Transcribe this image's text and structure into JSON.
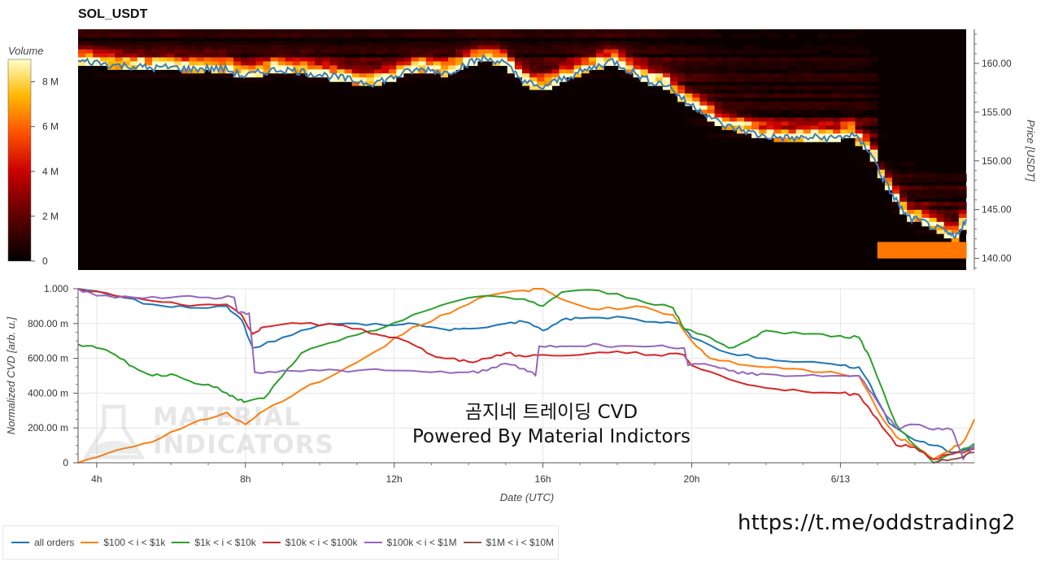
{
  "title": "SOL_USDT",
  "colorbar": {
    "label": "Volume",
    "ticks": [
      "0",
      "2 M",
      "4 M",
      "6 M",
      "8 M"
    ],
    "tick_values": [
      0,
      2,
      4,
      6,
      8
    ],
    "max": 9
  },
  "heatmap": {
    "ylabel": "Price [USDT]",
    "ylim": [
      138.8,
      163.5
    ],
    "yticks": [
      "140.00",
      "145.00",
      "150.00",
      "155.00",
      "160.00"
    ],
    "ytick_values": [
      140,
      145,
      150,
      155,
      160
    ],
    "time_start": 3.5,
    "time_end": 27.6,
    "price_series": [
      [
        3.5,
        160.2
      ],
      [
        4.0,
        160.1
      ],
      [
        4.5,
        159.8
      ],
      [
        5.0,
        159.7
      ],
      [
        5.5,
        159.5
      ],
      [
        6.0,
        159.6
      ],
      [
        6.5,
        159.4
      ],
      [
        7.0,
        159.5
      ],
      [
        7.5,
        159.4
      ],
      [
        8.0,
        158.7
      ],
      [
        8.5,
        159.1
      ],
      [
        9.0,
        159.4
      ],
      [
        9.5,
        159.2
      ],
      [
        10.0,
        158.9
      ],
      [
        10.5,
        158.6
      ],
      [
        11.0,
        158.2
      ],
      [
        11.5,
        158.0
      ],
      [
        12.0,
        158.5
      ],
      [
        12.5,
        159.2
      ],
      [
        13.0,
        159.4
      ],
      [
        13.5,
        159.0
      ],
      [
        14.0,
        159.9
      ],
      [
        14.5,
        160.5
      ],
      [
        15.0,
        160.2
      ],
      [
        15.5,
        158.5
      ],
      [
        16.0,
        157.4
      ],
      [
        16.5,
        158.2
      ],
      [
        17.0,
        158.9
      ],
      [
        17.5,
        159.6
      ],
      [
        18.0,
        160.3
      ],
      [
        18.5,
        159.2
      ],
      [
        19.0,
        158.2
      ],
      [
        19.5,
        157.8
      ],
      [
        20.0,
        156.0
      ],
      [
        20.5,
        155.0
      ],
      [
        21.0,
        153.6
      ],
      [
        21.5,
        153.2
      ],
      [
        22.0,
        152.6
      ],
      [
        22.5,
        152.4
      ],
      [
        23.0,
        152.3
      ],
      [
        23.5,
        152.4
      ],
      [
        24.0,
        152.3
      ],
      [
        24.5,
        152.7
      ],
      [
        25.0,
        151.0
      ],
      [
        25.3,
        148.5
      ],
      [
        25.6,
        146.5
      ],
      [
        26.0,
        144.2
      ],
      [
        26.5,
        143.6
      ],
      [
        27.0,
        142.7
      ],
      [
        27.3,
        142.1
      ],
      [
        27.6,
        144.0
      ]
    ]
  },
  "chart_data": [
    {
      "type": "line",
      "title": "SOL_USDT",
      "xlabel": "Date (UTC)",
      "ylabel": "Price [USDT]",
      "series": [
        {
          "name": "price",
          "values": "see heatmap.price_series"
        }
      ]
    },
    {
      "type": "line",
      "title": "",
      "xlabel": "Date (UTC)",
      "ylabel": "Normalized CVD [arb. u.]",
      "ylim": [
        0,
        1.0
      ],
      "xlim": [
        3.5,
        27.6
      ],
      "x_ticks": [
        "4h",
        "8h",
        "12h",
        "16h",
        "20h",
        "6/13"
      ],
      "x_tick_values": [
        4,
        8,
        12,
        16,
        20,
        24
      ],
      "y_ticks": [
        "0",
        "200.00 m",
        "400.00 m",
        "600.00 m",
        "800.00 m",
        "1.000"
      ],
      "y_tick_values": [
        0,
        0.2,
        0.4,
        0.6,
        0.8,
        1.0
      ],
      "series": [
        {
          "name": "all orders",
          "color": "#1f77b4",
          "points": [
            [
              3.5,
              1.0
            ],
            [
              4.5,
              0.96
            ],
            [
              5.5,
              0.91
            ],
            [
              6.5,
              0.89
            ],
            [
              7.5,
              0.9
            ],
            [
              7.9,
              0.82
            ],
            [
              8.2,
              0.66
            ],
            [
              9.0,
              0.72
            ],
            [
              10.0,
              0.79
            ],
            [
              11.0,
              0.8
            ],
            [
              12.0,
              0.79
            ],
            [
              12.5,
              0.8
            ],
            [
              13.0,
              0.78
            ],
            [
              13.5,
              0.76
            ],
            [
              14.0,
              0.77
            ],
            [
              15.0,
              0.8
            ],
            [
              15.5,
              0.81
            ],
            [
              16.0,
              0.76
            ],
            [
              16.5,
              0.82
            ],
            [
              17.0,
              0.83
            ],
            [
              18.0,
              0.84
            ],
            [
              19.0,
              0.81
            ],
            [
              19.7,
              0.8
            ],
            [
              20.0,
              0.72
            ],
            [
              21.0,
              0.63
            ],
            [
              22.0,
              0.6
            ],
            [
              23.0,
              0.58
            ],
            [
              24.0,
              0.56
            ],
            [
              24.5,
              0.55
            ],
            [
              24.8,
              0.45
            ],
            [
              25.3,
              0.23
            ],
            [
              26.0,
              0.13
            ],
            [
              26.5,
              0.1
            ],
            [
              27.0,
              0.06
            ],
            [
              27.6,
              0.09
            ]
          ]
        },
        {
          "name": "$100 < i < $1k",
          "color": "#ff7f0e",
          "points": [
            [
              3.5,
              0.0
            ],
            [
              4.5,
              0.07
            ],
            [
              5.5,
              0.12
            ],
            [
              6.5,
              0.22
            ],
            [
              7.5,
              0.29
            ],
            [
              8.0,
              0.22
            ],
            [
              8.5,
              0.3
            ],
            [
              9.5,
              0.42
            ],
            [
              10.5,
              0.52
            ],
            [
              11.5,
              0.64
            ],
            [
              12.5,
              0.78
            ],
            [
              13.5,
              0.86
            ],
            [
              14.5,
              0.96
            ],
            [
              15.5,
              0.99
            ],
            [
              16.0,
              1.0
            ],
            [
              16.5,
              0.94
            ],
            [
              17.5,
              0.88
            ],
            [
              18.5,
              0.9
            ],
            [
              19.5,
              0.85
            ],
            [
              20.0,
              0.7
            ],
            [
              20.5,
              0.6
            ],
            [
              21.5,
              0.56
            ],
            [
              22.5,
              0.54
            ],
            [
              23.5,
              0.52
            ],
            [
              24.5,
              0.5
            ],
            [
              25.0,
              0.3
            ],
            [
              25.5,
              0.15
            ],
            [
              26.0,
              0.1
            ],
            [
              26.5,
              0.02
            ],
            [
              27.0,
              0.08
            ],
            [
              27.3,
              0.12
            ],
            [
              27.6,
              0.25
            ]
          ]
        },
        {
          "name": "$1k < i < $10k",
          "color": "#2ca02c",
          "points": [
            [
              3.5,
              0.68
            ],
            [
              4.0,
              0.66
            ],
            [
              4.5,
              0.62
            ],
            [
              5.0,
              0.55
            ],
            [
              5.5,
              0.5
            ],
            [
              6.0,
              0.51
            ],
            [
              6.5,
              0.47
            ],
            [
              7.0,
              0.45
            ],
            [
              7.5,
              0.4
            ],
            [
              7.8,
              0.36
            ],
            [
              8.0,
              0.35
            ],
            [
              8.5,
              0.37
            ],
            [
              9.0,
              0.5
            ],
            [
              9.5,
              0.63
            ],
            [
              10.5,
              0.7
            ],
            [
              11.5,
              0.76
            ],
            [
              12.5,
              0.85
            ],
            [
              13.5,
              0.92
            ],
            [
              14.5,
              0.96
            ],
            [
              15.5,
              0.94
            ],
            [
              16.0,
              0.9
            ],
            [
              16.5,
              0.98
            ],
            [
              17.5,
              0.99
            ],
            [
              18.5,
              0.94
            ],
            [
              19.5,
              0.89
            ],
            [
              19.8,
              0.77
            ],
            [
              20.5,
              0.72
            ],
            [
              21.0,
              0.66
            ],
            [
              21.5,
              0.7
            ],
            [
              22.0,
              0.76
            ],
            [
              23.0,
              0.74
            ],
            [
              24.0,
              0.73
            ],
            [
              24.5,
              0.72
            ],
            [
              24.8,
              0.6
            ],
            [
              25.5,
              0.22
            ],
            [
              26.0,
              0.1
            ],
            [
              26.5,
              0.0
            ],
            [
              27.0,
              0.05
            ],
            [
              27.6,
              0.11
            ]
          ]
        },
        {
          "name": "$10k < i < $100k",
          "color": "#d62728",
          "points": [
            [
              3.5,
              1.0
            ],
            [
              4.5,
              0.96
            ],
            [
              5.5,
              0.93
            ],
            [
              6.5,
              0.9
            ],
            [
              7.5,
              0.91
            ],
            [
              7.9,
              0.85
            ],
            [
              8.2,
              0.74
            ],
            [
              8.5,
              0.78
            ],
            [
              9.5,
              0.8
            ],
            [
              10.5,
              0.79
            ],
            [
              11.0,
              0.77
            ],
            [
              11.5,
              0.74
            ],
            [
              12.0,
              0.72
            ],
            [
              12.5,
              0.68
            ],
            [
              13.0,
              0.62
            ],
            [
              13.5,
              0.6
            ],
            [
              14.0,
              0.58
            ],
            [
              14.5,
              0.6
            ],
            [
              15.0,
              0.63
            ],
            [
              15.5,
              0.61
            ],
            [
              16.0,
              0.62
            ],
            [
              17.0,
              0.62
            ],
            [
              18.0,
              0.64
            ],
            [
              19.0,
              0.62
            ],
            [
              19.8,
              0.62
            ],
            [
              20.0,
              0.56
            ],
            [
              21.0,
              0.48
            ],
            [
              22.0,
              0.43
            ],
            [
              23.0,
              0.41
            ],
            [
              24.0,
              0.4
            ],
            [
              24.5,
              0.39
            ],
            [
              25.0,
              0.25
            ],
            [
              25.5,
              0.1
            ],
            [
              26.0,
              0.09
            ],
            [
              26.5,
              0.02
            ],
            [
              27.0,
              0.05
            ],
            [
              27.6,
              0.08
            ]
          ]
        },
        {
          "name": "$100k < i < $1M",
          "color": "#9467bd",
          "points": [
            [
              3.5,
              1.0
            ],
            [
              4.0,
              0.96
            ],
            [
              5.0,
              0.95
            ],
            [
              6.0,
              0.95
            ],
            [
              7.0,
              0.95
            ],
            [
              7.7,
              0.95
            ],
            [
              7.8,
              0.86
            ],
            [
              8.1,
              0.86
            ],
            [
              8.25,
              0.52
            ],
            [
              9.0,
              0.53
            ],
            [
              10.0,
              0.53
            ],
            [
              11.0,
              0.53
            ],
            [
              12.0,
              0.53
            ],
            [
              13.0,
              0.52
            ],
            [
              14.0,
              0.52
            ],
            [
              14.5,
              0.53
            ],
            [
              15.0,
              0.57
            ],
            [
              15.5,
              0.54
            ],
            [
              15.8,
              0.5
            ],
            [
              15.9,
              0.67
            ],
            [
              16.5,
              0.67
            ],
            [
              17.0,
              0.67
            ],
            [
              17.5,
              0.68
            ],
            [
              18.0,
              0.67
            ],
            [
              19.0,
              0.67
            ],
            [
              19.8,
              0.66
            ],
            [
              19.9,
              0.56
            ],
            [
              20.5,
              0.56
            ],
            [
              21.0,
              0.53
            ],
            [
              21.5,
              0.51
            ],
            [
              22.0,
              0.51
            ],
            [
              23.0,
              0.5
            ],
            [
              24.0,
              0.5
            ],
            [
              24.5,
              0.5
            ],
            [
              25.0,
              0.35
            ],
            [
              25.5,
              0.2
            ],
            [
              26.0,
              0.22
            ],
            [
              26.5,
              0.19
            ],
            [
              27.0,
              0.19
            ],
            [
              27.3,
              0.02
            ],
            [
              27.6,
              0.1
            ]
          ]
        },
        {
          "name": "$1M < i < $10M",
          "color": "#8c564b",
          "points": [
            [
              26.5,
              0.0
            ],
            [
              27.0,
              0.02
            ],
            [
              27.6,
              0.06
            ]
          ]
        }
      ]
    }
  ],
  "annotation": {
    "line1": "곰지네 트레이딩 CVD",
    "line2": "Powered By Material Indictors"
  },
  "watermark": {
    "line1": "MATERIAL",
    "line2": "INDICATORS"
  },
  "url": "https://t.me/oddstrading2"
}
